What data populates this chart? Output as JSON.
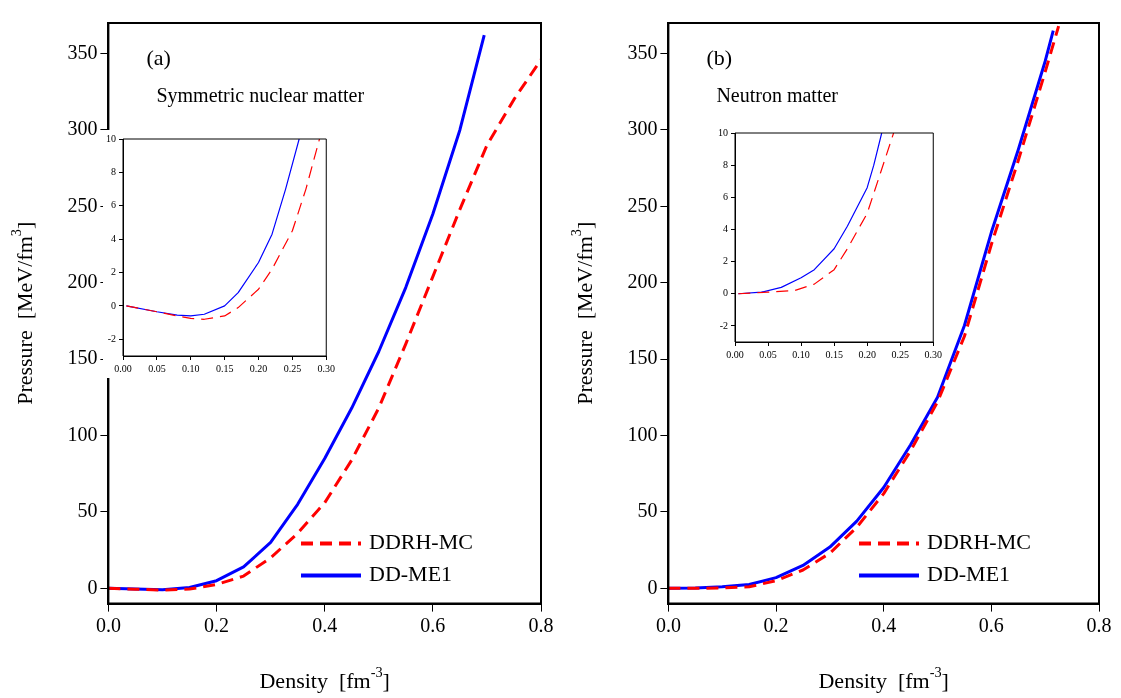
{
  "chart_data": [
    {
      "type": "line",
      "xlabel": "Density  [fm$^{-3}$]",
      "ylabel": "Pressure  [MeV/fm$^{3}$]",
      "annotations": [
        "(a)",
        "Symmetric nuclear matter"
      ],
      "xlim": [
        0,
        0.8
      ],
      "ylim": [
        -10,
        370
      ],
      "xticks": [
        {
          "value": 0,
          "label": "0.0"
        },
        {
          "value": 0.2,
          "label": "0.2"
        },
        {
          "value": 0.4,
          "label": "0.4"
        },
        {
          "value": 0.6,
          "label": "0.6"
        },
        {
          "value": 0.8,
          "label": "0.8"
        }
      ],
      "yticks": [
        0,
        50,
        100,
        150,
        200,
        250,
        300,
        350
      ],
      "legend": "bottom right",
      "marker": "none",
      "grid": false,
      "series": [
        {
          "name": "DDRH-MC",
          "color": "#ff0000",
          "line_style": "dashed",
          "x": [
            0,
            0.05,
            0.1,
            0.15,
            0.2,
            0.25,
            0.3,
            0.35,
            0.4,
            0.45,
            0.5,
            0.55,
            0.6,
            0.65,
            0.7,
            0.75,
            0.8
          ],
          "values": [
            0,
            -0.6,
            -1.2,
            -0.5,
            2.5,
            8,
            20,
            36,
            56,
            84,
            118,
            160,
            204,
            248,
            290,
            320,
            346
          ]
        },
        {
          "name": "DD-ME1",
          "color": "#0000ff",
          "line_style": "solid",
          "x": [
            0,
            0.05,
            0.1,
            0.15,
            0.2,
            0.25,
            0.3,
            0.35,
            0.4,
            0.45,
            0.5,
            0.55,
            0.6,
            0.65,
            0.695
          ],
          "values": [
            0,
            -0.5,
            -1,
            0.5,
            5,
            14,
            30,
            55,
            85,
            118,
            155,
            197,
            245,
            300,
            362
          ]
        }
      ]
    },
    {
      "type": "line",
      "xlim": [
        0,
        0.3
      ],
      "ylim": [
        -3,
        10
      ],
      "xticks": [
        {
          "value": 0,
          "label": "0.00"
        },
        {
          "value": 0.05,
          "label": "0.05"
        },
        {
          "value": 0.1,
          "label": "0.10"
        },
        {
          "value": 0.15,
          "label": "0.15"
        },
        {
          "value": 0.2,
          "label": "0.20"
        },
        {
          "value": 0.25,
          "label": "0.25"
        },
        {
          "value": 0.3,
          "label": "0.30"
        }
      ],
      "yticks": [
        -2,
        0,
        2,
        4,
        6,
        8,
        10
      ],
      "marker": "none",
      "grid": false,
      "series": [
        {
          "color": "#ff0000",
          "line_style": "dashed",
          "x": [
            0.005,
            0.05,
            0.08,
            0.1,
            0.12,
            0.15,
            0.17,
            0.2,
            0.22,
            0.25,
            0.27,
            0.29
          ],
          "values": [
            0,
            -0.35,
            -0.6,
            -0.75,
            -0.8,
            -0.6,
            -0.1,
            1,
            2.2,
            4.5,
            7,
            10
          ]
        },
        {
          "color": "#0000ff",
          "line_style": "solid",
          "x": [
            0.005,
            0.05,
            0.08,
            0.1,
            0.12,
            0.15,
            0.17,
            0.2,
            0.22,
            0.24,
            0.26
          ],
          "values": [
            0,
            -0.35,
            -0.55,
            -0.6,
            -0.5,
            0,
            0.8,
            2.6,
            4.3,
            7,
            10
          ]
        }
      ]
    },
    {
      "type": "line",
      "xlabel": "Density  [fm$^{-3}$]",
      "ylabel": "Pressure  [MeV/fm$^{3}$]",
      "annotations": [
        "(b)",
        "Neutron matter"
      ],
      "xlim": [
        0,
        0.8
      ],
      "ylim": [
        -10,
        370
      ],
      "xticks": [
        {
          "value": 0,
          "label": "0.0"
        },
        {
          "value": 0.2,
          "label": "0.2"
        },
        {
          "value": 0.4,
          "label": "0.4"
        },
        {
          "value": 0.6,
          "label": "0.6"
        },
        {
          "value": 0.8,
          "label": "0.8"
        }
      ],
      "yticks": [
        0,
        50,
        100,
        150,
        200,
        250,
        300,
        350
      ],
      "legend": "bottom right",
      "marker": "none",
      "grid": false,
      "series": [
        {
          "name": "DDRH-MC",
          "color": "#ff0000",
          "line_style": "dashed",
          "x": [
            0,
            0.05,
            0.1,
            0.15,
            0.2,
            0.25,
            0.3,
            0.35,
            0.4,
            0.45,
            0.5,
            0.55,
            0.6,
            0.65,
            0.7,
            0.725
          ],
          "values": [
            0,
            0,
            0.3,
            1,
            5,
            12,
            23,
            40,
            62,
            90,
            122,
            165,
            225,
            280,
            338,
            368
          ]
        },
        {
          "name": "DD-ME1",
          "color": "#0000ff",
          "line_style": "solid",
          "x": [
            0,
            0.05,
            0.1,
            0.15,
            0.2,
            0.25,
            0.3,
            0.35,
            0.4,
            0.45,
            0.5,
            0.55,
            0.6,
            0.65,
            0.7,
            0.715
          ],
          "values": [
            0,
            0.2,
            1,
            2.5,
            7,
            15,
            27,
            44,
            66,
            94,
            125,
            172,
            233,
            287,
            345,
            365
          ]
        }
      ]
    },
    {
      "type": "line",
      "xlim": [
        0,
        0.3
      ],
      "ylim": [
        -3,
        10
      ],
      "xticks": [
        {
          "value": 0,
          "label": "0.00"
        },
        {
          "value": 0.05,
          "label": "0.05"
        },
        {
          "value": 0.1,
          "label": "0.10"
        },
        {
          "value": 0.15,
          "label": "0.15"
        },
        {
          "value": 0.2,
          "label": "0.20"
        },
        {
          "value": 0.25,
          "label": "0.25"
        },
        {
          "value": 0.3,
          "label": "0.30"
        }
      ],
      "yticks": [
        -2,
        0,
        2,
        4,
        6,
        8,
        10
      ],
      "marker": "none",
      "grid": false,
      "series": [
        {
          "color": "#ff0000",
          "line_style": "dashed",
          "x": [
            0.005,
            0.05,
            0.09,
            0.12,
            0.15,
            0.17,
            0.2,
            0.22,
            0.24
          ],
          "values": [
            0,
            0.1,
            0.2,
            0.6,
            1.5,
            2.8,
            5,
            7.5,
            10
          ]
        },
        {
          "color": "#0000ff",
          "line_style": "solid",
          "x": [
            0.005,
            0.04,
            0.07,
            0.1,
            0.12,
            0.15,
            0.17,
            0.2,
            0.21,
            0.222
          ],
          "values": [
            0,
            0.1,
            0.4,
            1,
            1.5,
            2.8,
            4.2,
            6.6,
            8,
            10
          ]
        }
      ]
    }
  ]
}
